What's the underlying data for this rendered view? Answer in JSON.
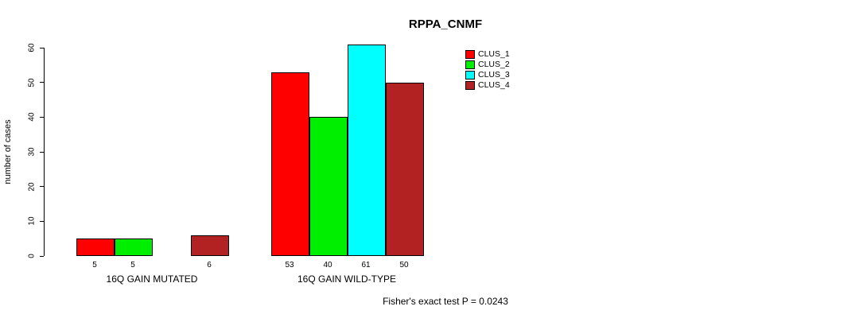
{
  "title": "RPPA_CNMF",
  "ylabel": "number of cases",
  "footer": "Fisher's exact test P = 0.0243",
  "legend": [
    {
      "label": "CLUS_1",
      "color": "#ff0000"
    },
    {
      "label": "CLUS_2",
      "color": "#00ee00"
    },
    {
      "label": "CLUS_3",
      "color": "#00ffff"
    },
    {
      "label": "CLUS_4",
      "color": "#b22222"
    }
  ],
  "chart_data": {
    "type": "bar",
    "title": "RPPA_CNMF",
    "xlabel": "",
    "ylabel": "number of cases",
    "categories": [
      "16Q GAIN MUTATED",
      "16Q GAIN WILD-TYPE"
    ],
    "series": [
      {
        "name": "CLUS_1",
        "color": "#ff0000",
        "values": [
          5,
          53
        ]
      },
      {
        "name": "CLUS_2",
        "color": "#00ee00",
        "values": [
          5,
          40
        ]
      },
      {
        "name": "CLUS_3",
        "color": "#00ffff",
        "values": [
          0,
          61
        ]
      },
      {
        "name": "CLUS_4",
        "color": "#b22222",
        "values": [
          6,
          50
        ]
      }
    ],
    "bar_labels": [
      [
        "5",
        "5",
        "",
        "6"
      ],
      [
        "53",
        "40",
        "61",
        "50"
      ]
    ],
    "ylim": [
      0,
      60
    ],
    "yticks": [
      0,
      10,
      20,
      30,
      40,
      50,
      60
    ],
    "grid": false,
    "legend_position": "top-right",
    "annotation": "Fisher's exact test P = 0.0243"
  }
}
